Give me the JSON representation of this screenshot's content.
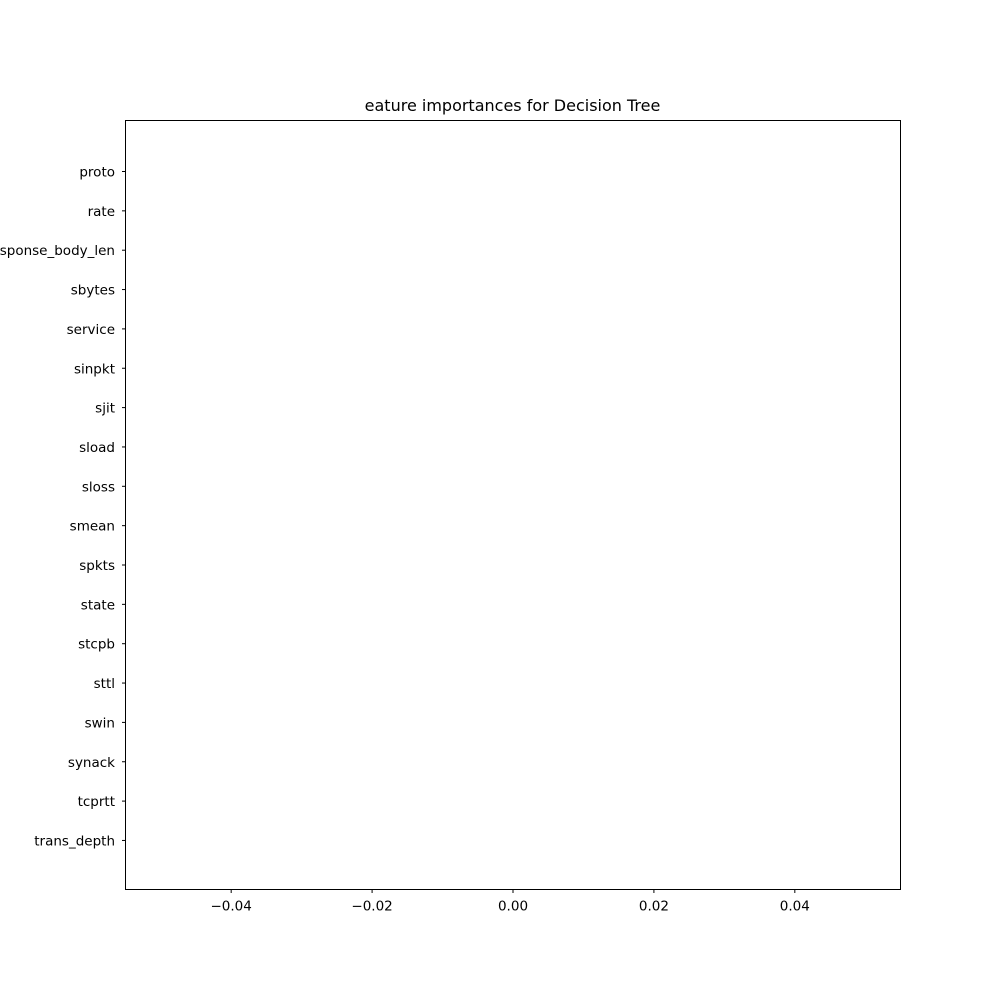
{
  "chart_data": {
    "type": "bar",
    "orientation": "horizontal",
    "title": "eature importances for Decision Tree",
    "xlabel": "",
    "ylabel": "",
    "categories": [
      "proto",
      "rate",
      "sponse_body_len",
      "sbytes",
      "service",
      "sinpkt",
      "sjit",
      "sload",
      "sloss",
      "smean",
      "spkts",
      "state",
      "stcpb",
      "sttl",
      "swin",
      "synack",
      "tcprtt",
      "trans_depth"
    ],
    "values": [
      0,
      0,
      0,
      0,
      0,
      0,
      0,
      0,
      0,
      0,
      0,
      0,
      0,
      0,
      0,
      0,
      0,
      0
    ],
    "xlim": [
      -0.055,
      0.055
    ],
    "xticks": [
      -0.04,
      -0.02,
      0.0,
      0.02,
      0.04
    ],
    "xtick_labels": [
      "−0.04",
      "−0.02",
      "0.00",
      "0.02",
      "0.04"
    ],
    "grid": false,
    "legend": "none",
    "colors": {
      "bar": "#1f77b4",
      "axes": "#000000",
      "background": "#ffffff"
    }
  }
}
